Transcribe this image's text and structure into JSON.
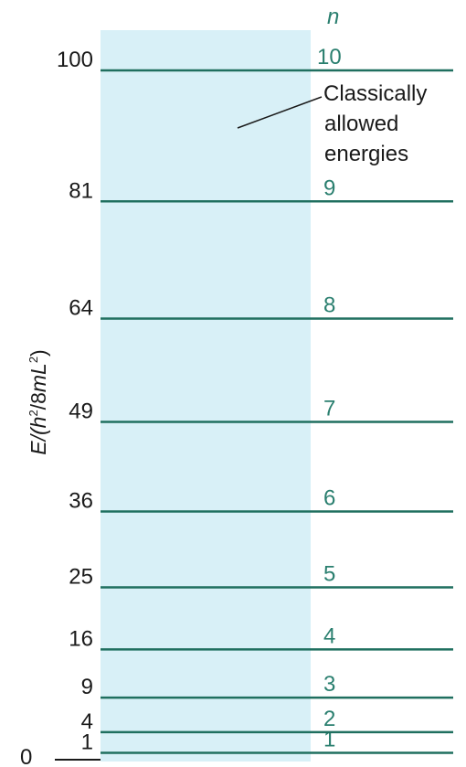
{
  "diagram": {
    "axis_label_parts": [
      "E/(",
      "h",
      "2",
      "/8",
      "m",
      "L",
      "2",
      ")"
    ],
    "n_header": "n",
    "annotation_lines": [
      "Classically",
      "allowed",
      "energies"
    ],
    "zero_label": "0",
    "levels": [
      {
        "n": 1,
        "energy": 1,
        "n_label": "1",
        "energy_label": "1"
      },
      {
        "n": 2,
        "energy": 4,
        "n_label": "2",
        "energy_label": "4"
      },
      {
        "n": 3,
        "energy": 9,
        "n_label": "3",
        "energy_label": "9"
      },
      {
        "n": 4,
        "energy": 16,
        "n_label": "4",
        "energy_label": "16"
      },
      {
        "n": 5,
        "energy": 25,
        "n_label": "5",
        "energy_label": "25"
      },
      {
        "n": 6,
        "energy": 36,
        "n_label": "6",
        "energy_label": "36"
      },
      {
        "n": 7,
        "energy": 49,
        "n_label": "7",
        "energy_label": "49"
      },
      {
        "n": 8,
        "energy": 64,
        "n_label": "8",
        "energy_label": "64"
      },
      {
        "n": 9,
        "energy": 81,
        "n_label": "9",
        "energy_label": "81"
      },
      {
        "n": 10,
        "energy": 100,
        "n_label": "10",
        "energy_label": "100"
      }
    ],
    "colors": {
      "level_line": "#1f6f5f",
      "level_label": "#2a7f6f",
      "shaded_region": "#d8f0f7",
      "text": "#1a1a1a"
    }
  }
}
